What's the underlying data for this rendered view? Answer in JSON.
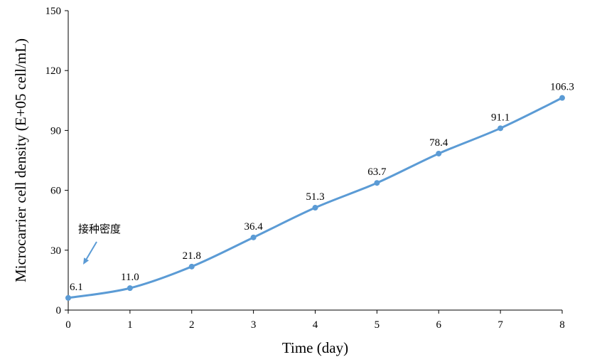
{
  "chart_data": {
    "type": "line",
    "title": "",
    "xlabel": "Time (day)",
    "ylabel": "Microcarrier cell density (E+05 cell/mL)",
    "x": [
      0,
      1,
      2,
      3,
      4,
      5,
      6,
      7,
      8
    ],
    "xlim": [
      0,
      8
    ],
    "ylim": [
      0,
      150
    ],
    "yticks": [
      0,
      30,
      60,
      90,
      120,
      150
    ],
    "grid": false,
    "series": [
      {
        "values": [
          6.1,
          11.0,
          21.8,
          36.4,
          51.3,
          63.7,
          78.4,
          91.1,
          106.3
        ],
        "labels": [
          "6.1",
          "11.0",
          "21.8",
          "36.4",
          "51.3",
          "63.7",
          "78.4",
          "91.1",
          "106.3"
        ],
        "color": "#5b9bd5",
        "smooth": true
      }
    ],
    "annotations": [
      {
        "text": "接种密度",
        "points_to_x": 0,
        "points_to_y": 6.1
      }
    ]
  }
}
